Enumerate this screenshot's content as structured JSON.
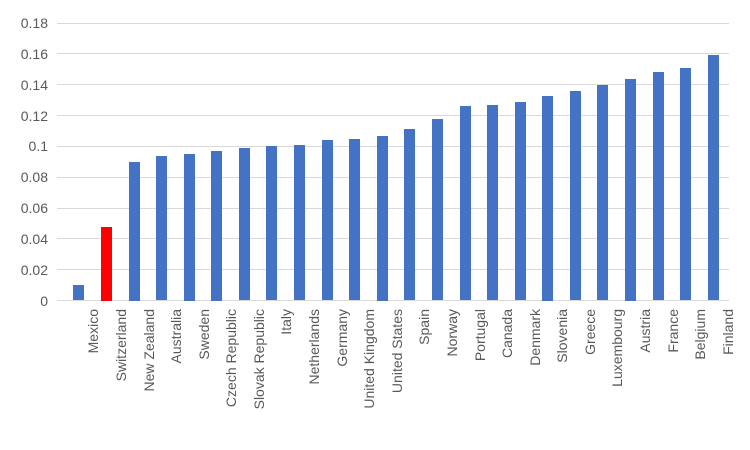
{
  "chart_data": {
    "type": "bar",
    "title": "",
    "xlabel": "",
    "ylabel": "",
    "categories": [
      "Mexico",
      "Switzerland",
      "New Zealand",
      "Australia",
      "Sweden",
      "Czech Republic",
      "Slovak Republic",
      "Italy",
      "Netherlands",
      "Germany",
      "United Kingdom",
      "United States",
      "Spain",
      "Norway",
      "Portugal",
      "Canada",
      "Denmark",
      "Slovenia",
      "Greece",
      "Luxembourg",
      "Austria",
      "France",
      "Belgium",
      "Finland"
    ],
    "values": [
      0.01,
      0.048,
      0.09,
      0.094,
      0.095,
      0.097,
      0.099,
      0.1,
      0.101,
      0.104,
      0.105,
      0.107,
      0.111,
      0.118,
      0.126,
      0.127,
      0.129,
      0.133,
      0.136,
      0.14,
      0.144,
      0.148,
      0.151,
      0.159
    ],
    "highlight": {
      "category": "Switzerland",
      "index": 1,
      "color": "#FF0000"
    },
    "bar_color": "#4472C4",
    "ylim": [
      0,
      0.18
    ],
    "yticks": {
      "values": [
        0,
        0.02,
        0.04,
        0.06,
        0.08,
        0.1,
        0.12,
        0.14,
        0.16,
        0.18
      ],
      "labels": [
        "0",
        "0.02",
        "0.04",
        "0.06",
        "0.08",
        "0.1",
        "0.12",
        "0.14",
        "0.16",
        "0.18"
      ]
    },
    "grid": true,
    "legend": false,
    "gridline_color": "#D9D9D9",
    "axis_line_color": "#D9D9D9",
    "tick_label_color": "#595959",
    "background_color": "#FFFFFF"
  }
}
